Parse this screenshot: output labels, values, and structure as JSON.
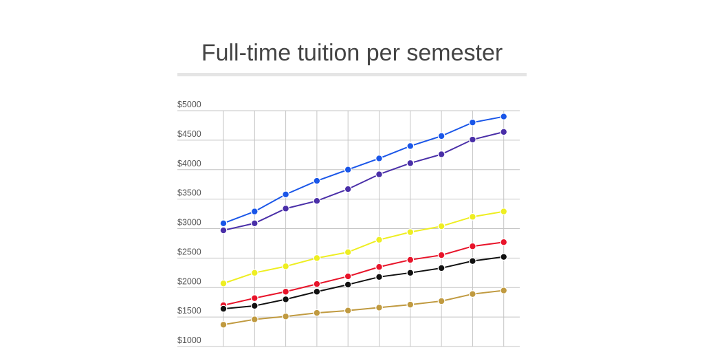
{
  "chart_data": {
    "type": "line",
    "title": "Full-time tuition per semester",
    "xlabel": "",
    "ylabel": "",
    "ylim": [
      1000,
      5000
    ],
    "x": [
      1,
      2,
      3,
      4,
      5,
      6,
      7,
      8,
      9,
      10
    ],
    "y_ticks": [
      "$1000",
      "$1500",
      "$2000",
      "$2500",
      "$3000",
      "$3500",
      "$4000",
      "$4500",
      "$5000"
    ],
    "grid": true,
    "legend": "none",
    "series": [
      {
        "color": "#1a56e8",
        "values": [
          3090,
          3290,
          3580,
          3810,
          4000,
          4190,
          4400,
          4570,
          4800,
          4900
        ]
      },
      {
        "color": "#4a2fa8",
        "values": [
          2970,
          3090,
          3340,
          3470,
          3670,
          3920,
          4110,
          4260,
          4510,
          4640
        ]
      },
      {
        "color": "#eeee22",
        "values": [
          2070,
          2250,
          2360,
          2500,
          2600,
          2810,
          2940,
          3040,
          3200,
          3290
        ]
      },
      {
        "color": "#e8142a",
        "values": [
          1700,
          1820,
          1930,
          2060,
          2190,
          2350,
          2470,
          2550,
          2700,
          2770
        ]
      },
      {
        "color": "#111111",
        "values": [
          1640,
          1690,
          1800,
          1930,
          2050,
          2180,
          2250,
          2330,
          2450,
          2520
        ]
      },
      {
        "color": "#c09a40",
        "values": [
          1370,
          1460,
          1510,
          1570,
          1610,
          1660,
          1710,
          1770,
          1890,
          1950
        ]
      }
    ]
  }
}
